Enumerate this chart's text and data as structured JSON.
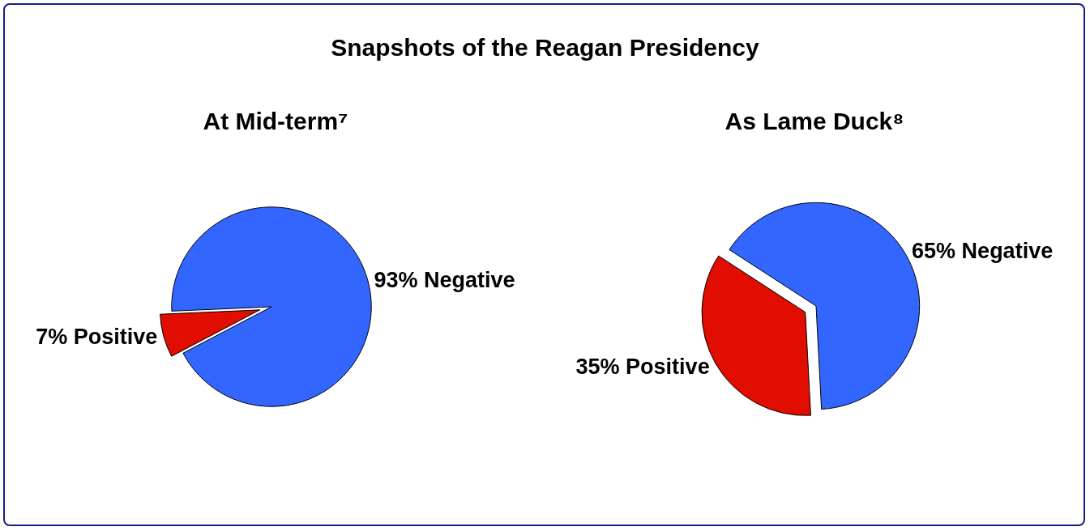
{
  "chart_data": [
    {
      "type": "pie",
      "title": "Snapshots of the Reagan Presidency",
      "subtitle": "At Mid-term⁷",
      "categories": [
        "93% Negative",
        "7% Positive"
      ],
      "values": [
        93,
        7
      ],
      "colors": [
        "#3366ff",
        "#e00d00"
      ],
      "legend": false
    },
    {
      "type": "pie",
      "subtitle": "As Lame Duck⁸",
      "categories": [
        "65% Negative",
        "35% Positive"
      ],
      "values": [
        65,
        35
      ],
      "colors": [
        "#3366ff",
        "#e00d00"
      ],
      "legend": false
    }
  ]
}
